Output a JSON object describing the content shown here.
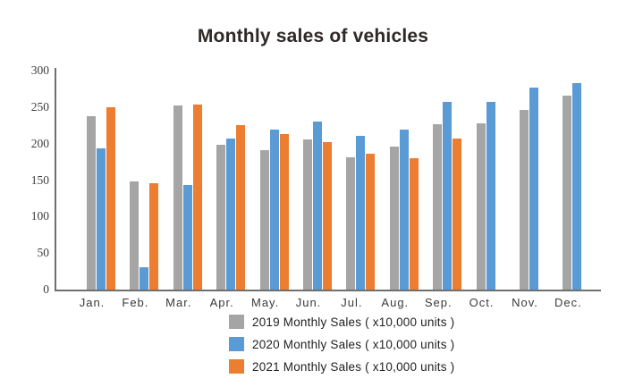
{
  "chart_data": {
    "type": "bar",
    "title": "Monthly sales of vehicles",
    "xlabel": "",
    "ylabel": "",
    "ylim": [
      0,
      300
    ],
    "yticks": [
      0,
      50,
      100,
      150,
      200,
      250,
      300
    ],
    "grid": false,
    "legend_position": "bottom",
    "categories": [
      "Jan.",
      "Feb.",
      "Mar.",
      "Apr.",
      "May.",
      "Jun.",
      "Jul.",
      "Aug.",
      "Sep.",
      "Oct.",
      "Nov.",
      "Dec."
    ],
    "series": [
      {
        "name": "2019 Monthly Sales ( x10,000 units )",
        "year": "2019",
        "color": "#a5a5a5",
        "values": [
          238,
          148,
          252,
          198,
          191,
          206,
          181,
          196,
          227,
          228,
          246,
          266
        ]
      },
      {
        "name": "2020 Monthly Sales ( x10,000 units )",
        "year": "2020",
        "color": "#5b9bd5",
        "values": [
          194,
          31,
          143,
          207,
          219,
          230,
          211,
          219,
          257,
          257,
          277,
          283
        ]
      },
      {
        "name": "2021 Monthly Sales ( x10,000 units )",
        "year": "2021",
        "color": "#ed7d31",
        "values": [
          250,
          146,
          253,
          225,
          213,
          202,
          186,
          180,
          207,
          null,
          null,
          null
        ]
      }
    ]
  },
  "colors": {
    "axis": "#6f6f6f",
    "title_text": "#2e2826",
    "tick_text": "#3e3e3e",
    "background": "#ffffff"
  }
}
